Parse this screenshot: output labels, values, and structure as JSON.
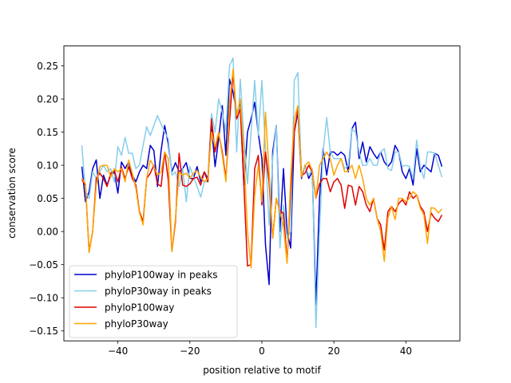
{
  "chart_data": {
    "type": "line",
    "title": "",
    "xlabel": "position relative to motif",
    "ylabel": "conservation score",
    "xlim": [
      -55,
      55
    ],
    "ylim": [
      -0.165,
      0.28
    ],
    "xticks": [
      -40,
      -20,
      0,
      20,
      40
    ],
    "xtick_labels": [
      "−40",
      "−20",
      "0",
      "20",
      "40"
    ],
    "yticks": [
      -0.15,
      -0.1,
      -0.05,
      0.0,
      0.05,
      0.1,
      0.15,
      0.2,
      0.25
    ],
    "ytick_labels": [
      "−0.15",
      "−0.10",
      "−0.05",
      "0.00",
      "0.05",
      "0.10",
      "0.15",
      "0.20",
      "0.25"
    ],
    "grid": false,
    "legend_position": "lower-left",
    "x": [
      -50,
      -49,
      -48,
      -47,
      -46,
      -45,
      -44,
      -43,
      -42,
      -41,
      -40,
      -39,
      -38,
      -37,
      -36,
      -35,
      -34,
      -33,
      -32,
      -31,
      -30,
      -29,
      -28,
      -27,
      -26,
      -25,
      -24,
      -23,
      -22,
      -21,
      -20,
      -19,
      -18,
      -17,
      -16,
      -15,
      -14,
      -13,
      -12,
      -11,
      -10,
      -9,
      -8,
      -7,
      -6,
      -5,
      -4,
      -3,
      -2,
      -1,
      0,
      1,
      2,
      3,
      4,
      5,
      6,
      7,
      8,
      9,
      10,
      11,
      12,
      13,
      14,
      15,
      16,
      17,
      18,
      19,
      20,
      21,
      22,
      23,
      24,
      25,
      26,
      27,
      28,
      29,
      30,
      31,
      32,
      33,
      34,
      35,
      36,
      37,
      38,
      39,
      40,
      41,
      42,
      43,
      44,
      45,
      46,
      47,
      48,
      49,
      50
    ],
    "series": [
      {
        "name": "phyloP100way in peaks",
        "color": "#0000cd",
        "values": [
          0.098,
          0.045,
          0.06,
          0.095,
          0.108,
          0.05,
          0.085,
          0.07,
          0.085,
          0.09,
          0.058,
          0.105,
          0.095,
          0.105,
          0.085,
          0.075,
          0.09,
          0.1,
          0.095,
          0.13,
          0.122,
          0.068,
          0.122,
          0.16,
          0.132,
          0.09,
          0.104,
          0.09,
          0.095,
          0.104,
          0.08,
          0.08,
          0.098,
          0.075,
          0.09,
          0.08,
          0.16,
          0.098,
          0.14,
          0.19,
          0.115,
          0.23,
          0.21,
          0.178,
          0.195,
          0.07,
          0.15,
          0.17,
          0.195,
          0.148,
          0.11,
          -0.02,
          -0.08,
          0.12,
          0.16,
          0.0,
          0.095,
          0.0,
          -0.025,
          0.15,
          0.18,
          0.08,
          0.1,
          0.08,
          0.09,
          -0.11,
          0.05,
          0.125,
          0.085,
          0.12,
          0.12,
          0.115,
          0.12,
          0.115,
          0.09,
          0.155,
          0.165,
          0.11,
          0.135,
          0.105,
          0.128,
          0.118,
          0.11,
          0.12,
          0.105,
          0.098,
          0.105,
          0.13,
          0.12,
          0.09,
          0.08,
          0.095,
          0.07,
          0.125,
          0.09,
          0.1,
          0.095,
          0.09,
          0.118,
          0.115,
          0.098
        ]
      },
      {
        "name": "phyloP30way in peaks",
        "color": "#87ceeb",
        "values": [
          0.13,
          0.06,
          0.05,
          0.09,
          0.08,
          0.09,
          0.1,
          0.09,
          0.095,
          0.075,
          0.128,
          0.115,
          0.142,
          0.118,
          0.118,
          0.095,
          0.1,
          0.13,
          0.158,
          0.145,
          0.16,
          0.175,
          0.162,
          0.15,
          0.14,
          0.085,
          0.09,
          0.068,
          0.095,
          0.045,
          0.098,
          0.082,
          0.068,
          0.052,
          0.075,
          0.075,
          0.178,
          0.15,
          0.2,
          0.18,
          0.152,
          0.25,
          0.262,
          0.12,
          0.23,
          0.14,
          0.072,
          0.15,
          0.228,
          0.145,
          0.228,
          0.125,
          0.01,
          0.11,
          0.16,
          -0.025,
          0.04,
          -0.01,
          0.0,
          0.228,
          0.24,
          0.085,
          0.098,
          0.085,
          0.095,
          -0.145,
          0.0,
          0.12,
          0.172,
          0.12,
          0.11,
          0.11,
          0.11,
          0.095,
          0.1,
          0.155,
          0.15,
          0.12,
          0.1,
          0.1,
          0.11,
          0.1,
          0.1,
          0.12,
          0.125,
          0.095,
          0.092,
          0.12,
          0.12,
          0.098,
          0.1,
          0.098,
          0.08,
          0.138,
          0.098,
          0.08,
          0.12,
          0.12,
          0.118,
          0.1,
          0.082
        ]
      },
      {
        "name": "phyloP100way",
        "color": "#e00000",
        "values": [
          0.078,
          0.07,
          -0.03,
          0.0,
          0.08,
          0.088,
          0.08,
          0.068,
          0.088,
          0.092,
          0.075,
          0.097,
          0.08,
          0.098,
          0.08,
          0.07,
          0.03,
          0.015,
          0.08,
          0.088,
          0.1,
          0.072,
          0.068,
          0.12,
          0.078,
          -0.03,
          0.015,
          0.118,
          0.07,
          0.068,
          0.072,
          0.08,
          0.082,
          0.07,
          0.09,
          0.075,
          0.17,
          0.12,
          0.148,
          0.12,
          0.08,
          0.165,
          0.24,
          0.17,
          0.185,
          0.07,
          -0.052,
          -0.05,
          0.095,
          0.115,
          0.04,
          0.12,
          0.075,
          -0.01,
          0.05,
          0.03,
          0.028,
          -0.045,
          0.06,
          0.15,
          0.185,
          0.085,
          0.088,
          0.1,
          0.09,
          0.05,
          0.072,
          0.08,
          0.08,
          0.06,
          0.075,
          0.08,
          0.07,
          0.035,
          0.07,
          0.068,
          0.04,
          0.068,
          0.06,
          0.04,
          0.03,
          0.05,
          0.02,
          0.01,
          -0.028,
          0.03,
          0.038,
          0.03,
          0.042,
          0.048,
          0.04,
          0.06,
          0.05,
          0.055,
          0.038,
          0.03,
          0.0,
          0.028,
          0.02,
          0.015,
          0.025
        ]
      },
      {
        "name": "phyloP30way",
        "color": "#ffa500",
        "values": [
          0.08,
          0.072,
          -0.032,
          0.0,
          0.07,
          0.098,
          0.1,
          0.1,
          0.082,
          0.095,
          0.09,
          0.095,
          0.075,
          0.108,
          0.088,
          0.065,
          0.028,
          0.01,
          0.08,
          0.108,
          0.098,
          0.085,
          0.09,
          0.12,
          0.11,
          -0.03,
          0.02,
          0.09,
          0.085,
          0.088,
          0.08,
          0.088,
          0.092,
          0.082,
          0.075,
          0.08,
          0.15,
          0.128,
          0.15,
          0.115,
          0.075,
          0.192,
          0.245,
          0.175,
          0.2,
          0.118,
          0.0,
          -0.055,
          0.055,
          0.1,
          0.045,
          0.18,
          0.09,
          -0.01,
          0.05,
          0.03,
          0.008,
          -0.048,
          0.08,
          0.17,
          0.19,
          0.082,
          0.1,
          0.105,
          0.092,
          0.05,
          0.1,
          0.11,
          0.12,
          0.11,
          0.085,
          0.1,
          0.11,
          0.09,
          0.092,
          0.1,
          0.08,
          0.1,
          0.08,
          0.05,
          0.04,
          0.05,
          0.02,
          0.0,
          -0.045,
          0.02,
          0.038,
          0.018,
          0.05,
          0.05,
          0.045,
          0.05,
          0.06,
          0.055,
          0.035,
          0.025,
          -0.018,
          0.036,
          0.035,
          0.028,
          0.034
        ]
      }
    ]
  }
}
